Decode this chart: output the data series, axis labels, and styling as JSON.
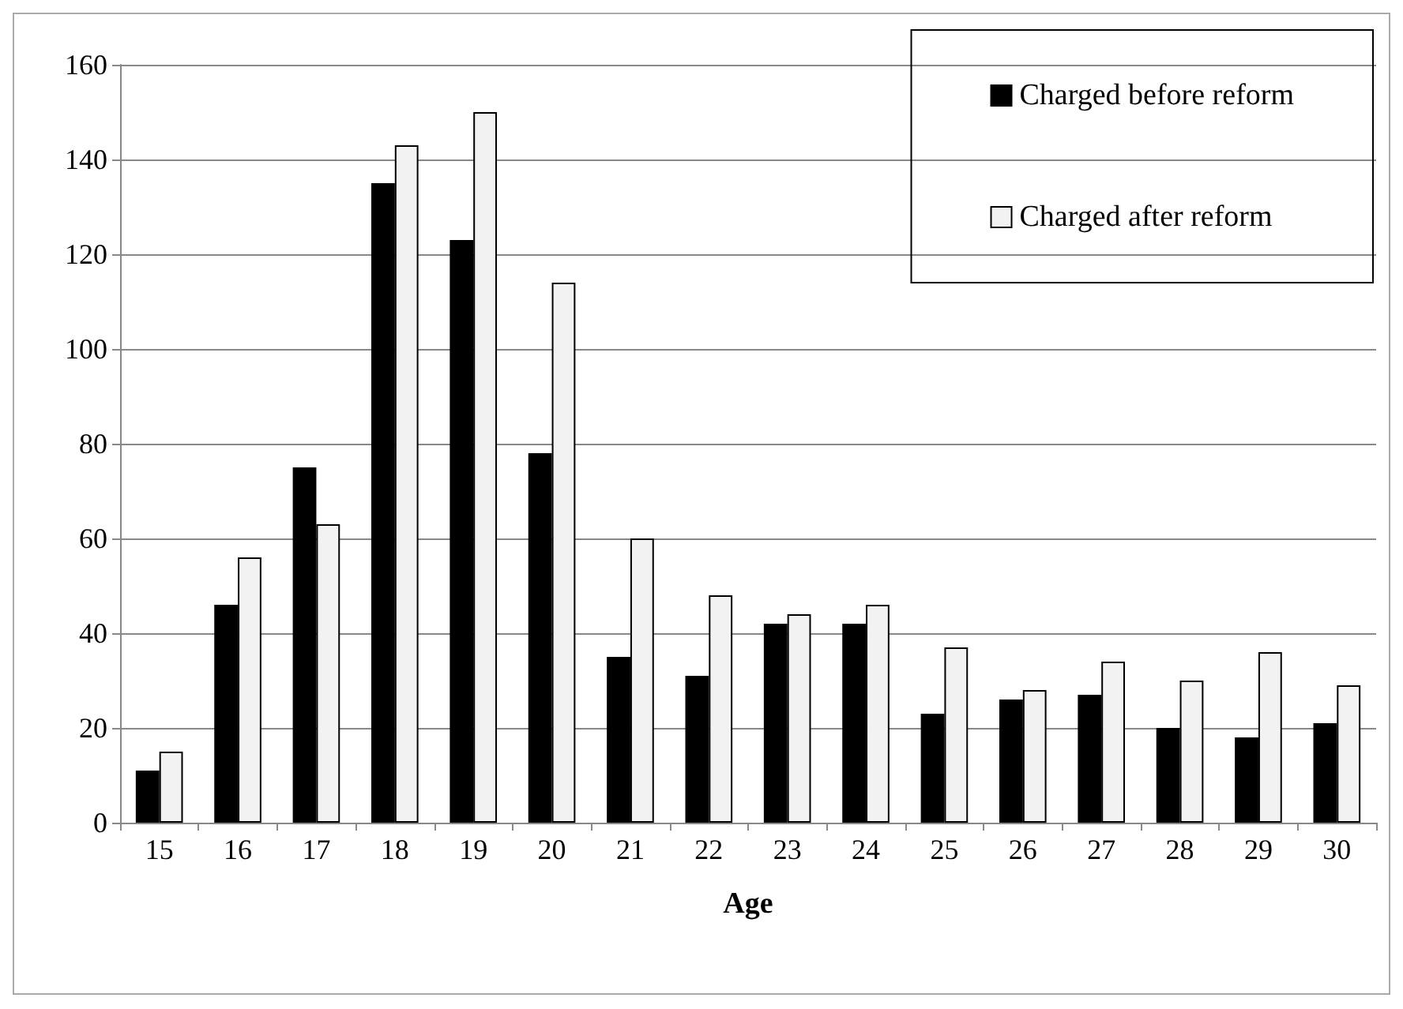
{
  "chart_data": {
    "type": "bar",
    "xlabel": "Age",
    "categories": [
      "15",
      "16",
      "17",
      "18",
      "19",
      "20",
      "21",
      "22",
      "23",
      "24",
      "25",
      "26",
      "27",
      "28",
      "29",
      "30"
    ],
    "series": [
      {
        "name": "Charged before reform",
        "color": "#000000",
        "values": [
          11,
          46,
          75,
          135,
          123,
          78,
          35,
          31,
          42,
          42,
          23,
          26,
          27,
          20,
          18,
          21
        ]
      },
      {
        "name": "Charged after reform",
        "color": "#f2f2f2",
        "values": [
          15,
          56,
          63,
          143,
          150,
          114,
          60,
          48,
          44,
          46,
          37,
          28,
          34,
          30,
          36,
          29
        ]
      }
    ],
    "ylim": [
      0,
      160
    ],
    "yticks": [
      0,
      20,
      40,
      60,
      80,
      100,
      120,
      140,
      160
    ],
    "grid": "y",
    "legend": "top right"
  }
}
